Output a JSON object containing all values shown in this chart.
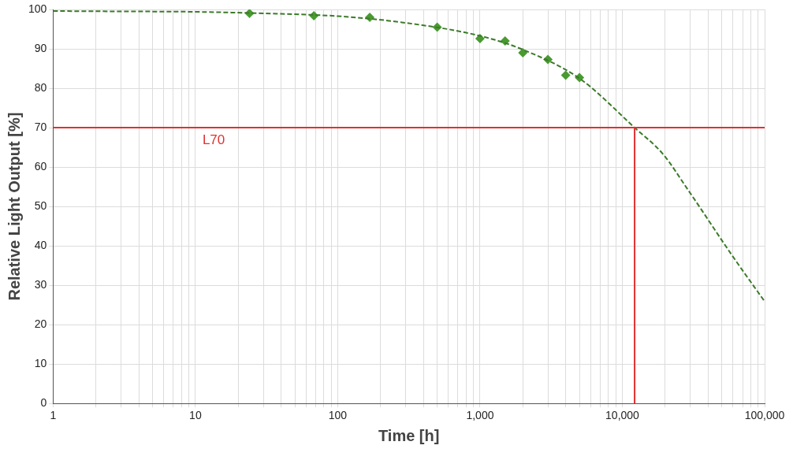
{
  "chart_data": {
    "type": "scatter",
    "xlabel": "Time [h]",
    "ylabel": "Relative Light Output [%]",
    "series": [
      {
        "type": "line",
        "color": "#3c7a2a",
        "line_style": "dashed",
        "marker": "none",
        "x": [
          1,
          3,
          10,
          30,
          100,
          300,
          1000,
          2000,
          5000,
          12200,
          19300,
          28600,
          59800,
          100000
        ],
        "values": [
          99.6,
          99.5,
          99.4,
          99,
          98.3,
          96.6,
          93.3,
          89.8,
          82.5,
          70,
          63.3,
          54.5,
          37.3,
          25.9
        ]
      },
      {
        "color": "#4a9a32",
        "marker": "diamond",
        "x": [
          24,
          68,
          168,
          500,
          1000,
          1500,
          2000,
          3000,
          4000,
          5000
        ],
        "values": [
          99,
          98.4,
          98,
          95.5,
          92.6,
          92,
          89,
          87.3,
          83.3,
          82.7
        ]
      }
    ],
    "log": "x",
    "grid": true,
    "legend": false,
    "xlim": [
      1,
      100000
    ],
    "xticks": [
      1,
      {
        "value": 2,
        "label": null
      },
      {
        "value": 3,
        "label": null
      },
      {
        "value": 4,
        "label": null
      },
      {
        "value": 5,
        "label": null
      },
      {
        "value": 6,
        "label": null
      },
      {
        "value": 7,
        "label": null
      },
      {
        "value": 8,
        "label": null
      },
      {
        "value": 9,
        "label": null
      },
      10,
      {
        "value": 20,
        "label": null
      },
      {
        "value": 30,
        "label": null
      },
      {
        "value": 40,
        "label": null
      },
      {
        "value": 50,
        "label": null
      },
      {
        "value": 60,
        "label": null
      },
      {
        "value": 70,
        "label": null
      },
      {
        "value": 80,
        "label": null
      },
      {
        "value": 90,
        "label": null
      },
      100,
      {
        "value": 200,
        "label": null
      },
      {
        "value": 300,
        "label": null
      },
      {
        "value": 400,
        "label": null
      },
      {
        "value": 500,
        "label": null
      },
      {
        "value": 600,
        "label": null
      },
      {
        "value": 700,
        "label": null
      },
      {
        "value": 800,
        "label": null
      },
      {
        "value": 900,
        "label": null
      },
      {
        "value": 1000,
        "label": "1,000"
      },
      {
        "value": 2000,
        "label": null
      },
      {
        "value": 3000,
        "label": null
      },
      {
        "value": 4000,
        "label": null
      },
      {
        "value": 5000,
        "label": null
      },
      {
        "value": 6000,
        "label": null
      },
      {
        "value": 7000,
        "label": null
      },
      {
        "value": 8000,
        "label": null
      },
      {
        "value": 9000,
        "label": null
      },
      {
        "value": 10000,
        "label": "10,000"
      },
      {
        "value": 20000,
        "label": null
      },
      {
        "value": 30000,
        "label": null
      },
      {
        "value": 40000,
        "label": null
      },
      {
        "value": 50000,
        "label": null
      },
      {
        "value": 60000,
        "label": null
      },
      {
        "value": 70000,
        "label": null
      },
      {
        "value": 80000,
        "label": null
      },
      {
        "value": 90000,
        "label": null
      },
      {
        "value": 100000,
        "label": "100,000"
      }
    ],
    "ylim": [
      0,
      100
    ],
    "yticks": [
      0,
      10,
      20,
      30,
      40,
      50,
      60,
      70,
      80,
      90,
      100
    ],
    "ref_lines": [
      {
        "axis": "y",
        "value": 70,
        "label": "L70",
        "color": "#e03030"
      },
      {
        "axis": "x",
        "value": 12200,
        "color": "#e03030"
      }
    ]
  }
}
